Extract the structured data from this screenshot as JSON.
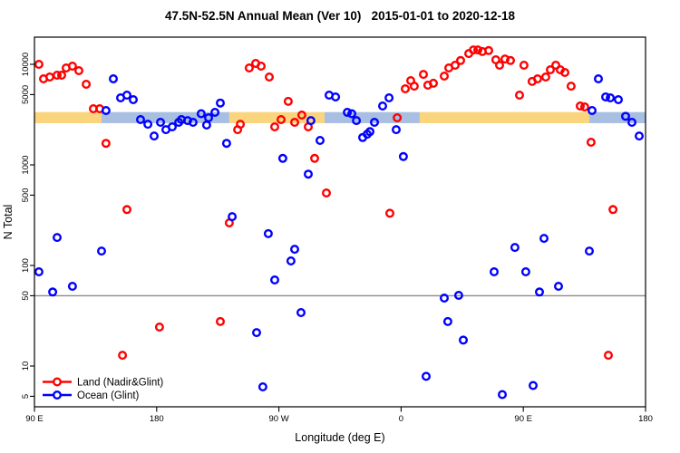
{
  "chart_data": {
    "type": "scatter",
    "title": "47.5N-52.5N Annual Mean (Ver 10)   2015-01-01 to 2020-12-18",
    "xlabel": "Longitude (deg E)",
    "ylabel": "N Total",
    "x_axis": {
      "note": "axis wraps eastward: 90E,180,90W,0,90E,180 stored as 90..540 deg",
      "range": [
        90,
        540
      ],
      "ticks": [
        90,
        180,
        270,
        360,
        450,
        540
      ],
      "tick_labels": [
        "90 E",
        "180",
        "90 W",
        "0",
        "90 E",
        "180"
      ]
    },
    "y_axis": {
      "scale": "log",
      "range": [
        4,
        18600
      ],
      "ticks": [
        5,
        10,
        50,
        100,
        500,
        1000,
        5000,
        10000
      ]
    },
    "grid": "off",
    "legend_position": "bottom-left",
    "reference_line": {
      "value": 50,
      "color": "#8a8a8a"
    },
    "mean_band": {
      "value_low": 2600,
      "value_high": 3350,
      "land_color": "#fbd57e",
      "ocean_color": "#a9bfe2",
      "segments": [
        {
          "from": 90,
          "to": 139.4,
          "surface": "land"
        },
        {
          "from": 139.4,
          "to": 233.5,
          "surface": "ocean"
        },
        {
          "from": 233.5,
          "to": 303.6,
          "surface": "land"
        },
        {
          "from": 303.6,
          "to": 373.7,
          "surface": "ocean"
        },
        {
          "from": 373.7,
          "to": 498.6,
          "surface": "land"
        },
        {
          "from": 498.6,
          "to": 540,
          "surface": "ocean"
        }
      ]
    },
    "series": [
      {
        "name": "Land (Nadir&Glint)",
        "color": "#ff0000",
        "points": [
          [
            93.3,
            10000
          ],
          [
            96.7,
            7180
          ],
          [
            101.3,
            7480
          ],
          [
            106.7,
            7790
          ],
          [
            110,
            7790
          ],
          [
            113.4,
            9200
          ],
          [
            118,
            9590
          ],
          [
            122.7,
            8650
          ],
          [
            128.1,
            6340
          ],
          [
            133.4,
            3620
          ],
          [
            138.1,
            3620
          ],
          [
            142.7,
            1640
          ],
          [
            239.6,
            2240
          ],
          [
            241.6,
            2540
          ],
          [
            248.2,
            9200
          ],
          [
            252.9,
            10200
          ],
          [
            256.9,
            9590
          ],
          [
            262.9,
            7480
          ],
          [
            266.9,
            2390
          ],
          [
            271.6,
            2820
          ],
          [
            276.9,
            4280
          ],
          [
            281.6,
            2650
          ],
          [
            286.9,
            3130
          ],
          [
            291.6,
            2390
          ],
          [
            296.3,
            1160
          ],
          [
            357.1,
            2940
          ],
          [
            363.1,
            5710
          ],
          [
            367.1,
            6890
          ],
          [
            369.7,
            6070
          ],
          [
            376.4,
            7950
          ],
          [
            379.7,
            6200
          ],
          [
            383.8,
            6480
          ],
          [
            391.8,
            7640
          ],
          [
            395.1,
            9200
          ],
          [
            399.8,
            9790
          ],
          [
            403.8,
            10900
          ],
          [
            409.8,
            12800
          ],
          [
            413.2,
            13900
          ],
          [
            416.5,
            13900
          ],
          [
            419.8,
            13400
          ],
          [
            424.5,
            13700
          ],
          [
            429.8,
            11100
          ],
          [
            432.5,
            9790
          ],
          [
            436.5,
            11300
          ],
          [
            440.5,
            10900
          ],
          [
            447.2,
            4940
          ],
          [
            450.5,
            9790
          ],
          [
            456.5,
            6750
          ],
          [
            460.5,
            7180
          ],
          [
            466.5,
            7480
          ],
          [
            469.9,
            8830
          ],
          [
            473.9,
            9790
          ],
          [
            477.2,
            8830
          ],
          [
            480.6,
            8300
          ],
          [
            485.2,
            6070
          ],
          [
            491.9,
            3850
          ],
          [
            495.2,
            3770
          ],
          [
            499.9,
            1680
          ],
          [
            158.1,
            360
          ],
          [
            233.5,
            265
          ],
          [
            305,
            526
          ],
          [
            351.7,
            330
          ],
          [
            516,
            360
          ],
          [
            182.1,
            24.4
          ],
          [
            226.9,
            27.7
          ],
          [
            154.8,
            12.8
          ],
          [
            512.6,
            12.8
          ]
        ]
      },
      {
        "name": "Ocean (Glint)",
        "color": "#0000ff",
        "points": [
          [
            148.1,
            7180
          ],
          [
            153.4,
            4640
          ],
          [
            158.1,
            4940
          ],
          [
            162.8,
            4450
          ],
          [
            142.7,
            3470
          ],
          [
            168.1,
            2820
          ],
          [
            173.5,
            2540
          ],
          [
            178.1,
            1940
          ],
          [
            182.8,
            2650
          ],
          [
            186.8,
            2240
          ],
          [
            191.5,
            2390
          ],
          [
            196.2,
            2650
          ],
          [
            198.2,
            2820
          ],
          [
            226.9,
            4120
          ],
          [
            212.8,
            3230
          ],
          [
            218.2,
            2940
          ],
          [
            222.9,
            3330
          ],
          [
            206.8,
            2650
          ],
          [
            202.8,
            2760
          ],
          [
            216.8,
            2490
          ],
          [
            231.5,
            1640
          ],
          [
            307,
            4940
          ],
          [
            311.7,
            4740
          ],
          [
            300.3,
            1750
          ],
          [
            293.6,
            2760
          ],
          [
            272.9,
            1160
          ],
          [
            291.6,
            810
          ],
          [
            320.4,
            3330
          ],
          [
            323.7,
            3230
          ],
          [
            327.1,
            2760
          ],
          [
            340.4,
            2650
          ],
          [
            346.4,
            3850
          ],
          [
            351.1,
            4640
          ],
          [
            335,
            2020
          ],
          [
            331.7,
            1870
          ],
          [
            337,
            2140
          ],
          [
            356.4,
            2240
          ],
          [
            361.7,
            1210
          ],
          [
            505.3,
            7180
          ],
          [
            510.6,
            4740
          ],
          [
            514,
            4640
          ],
          [
            520,
            4450
          ],
          [
            500.6,
            3470
          ],
          [
            525.3,
            3040
          ],
          [
            530,
            2650
          ],
          [
            535.3,
            1940
          ],
          [
            106.7,
            190
          ],
          [
            139.4,
            139
          ],
          [
            93.3,
            86.5
          ],
          [
            118,
            62
          ],
          [
            103.4,
            54.4
          ],
          [
            235.6,
            306
          ],
          [
            262.2,
            207
          ],
          [
            281.6,
            145
          ],
          [
            278.9,
            111
          ],
          [
            266.9,
            71.8
          ],
          [
            286.3,
            34
          ],
          [
            253.6,
            21.5
          ],
          [
            258.2,
            6.2
          ],
          [
            465.2,
            186
          ],
          [
            443.8,
            151
          ],
          [
            498.6,
            139
          ],
          [
            428.5,
            86.5
          ],
          [
            451.8,
            86.5
          ],
          [
            475.9,
            62
          ],
          [
            461.9,
            54.4
          ],
          [
            391.8,
            47.4
          ],
          [
            402.4,
            50.4
          ],
          [
            394.4,
            27.7
          ],
          [
            405.8,
            18.1
          ],
          [
            378.4,
            7.9
          ],
          [
            457.2,
            6.4
          ],
          [
            434.5,
            5.2
          ]
        ]
      }
    ]
  }
}
